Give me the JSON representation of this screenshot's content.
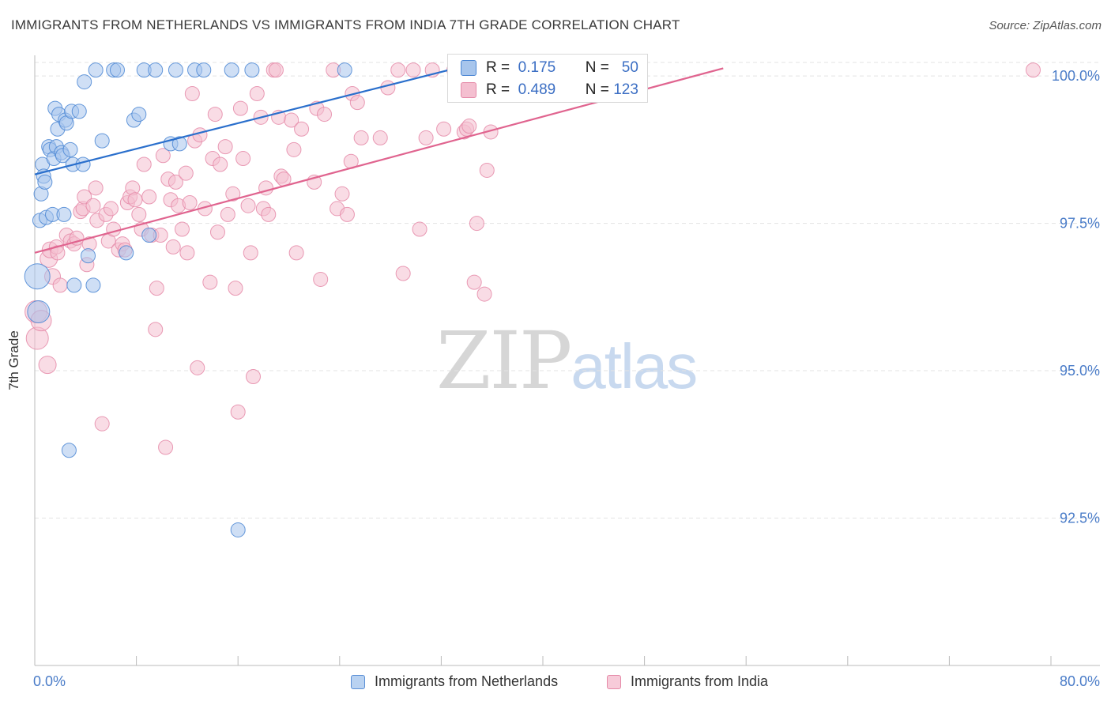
{
  "header": {
    "title": "IMMIGRANTS FROM NETHERLANDS VS IMMIGRANTS FROM INDIA 7TH GRADE CORRELATION CHART",
    "source": "Source: ZipAtlas.com"
  },
  "watermark": {
    "part1": "ZIP",
    "part2": "atlas"
  },
  "colors": {
    "blue_fill": "#a7c5ec",
    "blue_stroke": "#4a86d4",
    "blue_line": "#2a6fcc",
    "pink_fill": "#f4bfd0",
    "pink_stroke": "#e58aa8",
    "pink_line": "#e0648f",
    "grid": "#e3e3e3",
    "axis_tick_text": "#4a7cc8"
  },
  "stats": {
    "row1": {
      "r_label": "R =",
      "r_value": "0.175",
      "n_label": "N =",
      "n_value": "50"
    },
    "row2": {
      "r_label": "R =",
      "r_value": "0.489",
      "n_label": "N =",
      "n_value": "123"
    }
  },
  "legend": {
    "blue_label": "Immigrants from Netherlands",
    "pink_label": "Immigrants from India"
  },
  "axis": {
    "x_min_label": "0.0%",
    "x_max_label": "80.0%"
  },
  "chart_data": {
    "type": "scatter",
    "title": "IMMIGRANTS FROM NETHERLANDS VS IMMIGRANTS FROM INDIA 7TH GRADE CORRELATION CHART",
    "xlabel": "",
    "ylabel": "7th Grade",
    "xlim": [
      0,
      80
    ],
    "ylim": [
      90.0,
      100.35
    ],
    "yticks": [
      92.5,
      95.0,
      97.5,
      100.0
    ],
    "ytick_labels": [
      "92.5%",
      "95.0%",
      "97.5%",
      "100.0%"
    ],
    "grid": true,
    "legend_position": "bottom-center",
    "series": [
      {
        "name": "Immigrants from Netherlands",
        "R": 0.175,
        "N": 50,
        "trend": [
          [
            0.0,
            98.33
          ],
          [
            33.5,
            100.15
          ]
        ],
        "points": [
          [
            0.2,
            96.6,
            16
          ],
          [
            0.3,
            96.0,
            14
          ],
          [
            0.4,
            97.55,
            9
          ],
          [
            0.5,
            98.0,
            9
          ],
          [
            0.6,
            98.5,
            9
          ],
          [
            0.7,
            98.3,
            9
          ],
          [
            0.8,
            98.2,
            9
          ],
          [
            0.9,
            97.6,
            9
          ],
          [
            1.1,
            98.8,
            9
          ],
          [
            1.2,
            98.75,
            9
          ],
          [
            1.4,
            97.65,
            9
          ],
          [
            1.5,
            98.6,
            9
          ],
          [
            1.6,
            99.45,
            9
          ],
          [
            1.7,
            98.8,
            9
          ],
          [
            1.8,
            99.1,
            9
          ],
          [
            1.9,
            99.35,
            9
          ],
          [
            2.1,
            98.7,
            9
          ],
          [
            2.2,
            98.65,
            9
          ],
          [
            2.3,
            97.65,
            9
          ],
          [
            2.4,
            99.25,
            9
          ],
          [
            2.5,
            99.2,
            9
          ],
          [
            2.7,
            93.65,
            9
          ],
          [
            2.8,
            98.75,
            9
          ],
          [
            2.9,
            99.4,
            9
          ],
          [
            3.0,
            98.5,
            9
          ],
          [
            3.1,
            96.45,
            9
          ],
          [
            3.5,
            99.4,
            9
          ],
          [
            3.8,
            98.5,
            9
          ],
          [
            3.9,
            99.9,
            9
          ],
          [
            4.2,
            96.95,
            9
          ],
          [
            4.6,
            96.45,
            9
          ],
          [
            4.8,
            100.1,
            9
          ],
          [
            5.3,
            98.9,
            9
          ],
          [
            6.2,
            100.1,
            9
          ],
          [
            6.5,
            100.1,
            9
          ],
          [
            7.2,
            97.0,
            9
          ],
          [
            7.8,
            99.25,
            9
          ],
          [
            8.2,
            99.35,
            9
          ],
          [
            8.6,
            100.1,
            9
          ],
          [
            9.0,
            97.3,
            9
          ],
          [
            9.5,
            100.1,
            9
          ],
          [
            10.7,
            98.85,
            9
          ],
          [
            11.1,
            100.1,
            9
          ],
          [
            11.4,
            98.85,
            9
          ],
          [
            12.6,
            100.1,
            9
          ],
          [
            13.3,
            100.1,
            9
          ],
          [
            15.5,
            100.1,
            9
          ],
          [
            16.0,
            92.3,
            9
          ],
          [
            17.1,
            100.1,
            9
          ],
          [
            24.4,
            100.1,
            9
          ]
        ]
      },
      {
        "name": "Immigrants from India",
        "R": 0.489,
        "N": 123,
        "trend": [
          [
            0.0,
            97.0
          ],
          [
            54.2,
            100.13
          ]
        ],
        "points": [
          [
            0.1,
            96.0,
            14
          ],
          [
            0.2,
            95.55,
            14
          ],
          [
            0.5,
            95.85,
            13
          ],
          [
            1.0,
            95.1,
            11
          ],
          [
            1.1,
            96.9,
            11
          ],
          [
            1.2,
            97.05,
            10
          ],
          [
            1.4,
            96.6,
            10
          ],
          [
            1.7,
            97.1,
            9
          ],
          [
            1.8,
            97.0,
            9
          ],
          [
            2.0,
            96.45,
            9
          ],
          [
            2.5,
            97.3,
            9
          ],
          [
            2.8,
            97.2,
            9
          ],
          [
            3.1,
            97.15,
            9
          ],
          [
            3.3,
            97.25,
            9
          ],
          [
            3.6,
            97.7,
            9
          ],
          [
            3.8,
            97.75,
            9
          ],
          [
            3.9,
            97.95,
            9
          ],
          [
            4.1,
            96.8,
            9
          ],
          [
            4.3,
            97.15,
            9
          ],
          [
            4.6,
            97.8,
            9
          ],
          [
            4.8,
            98.1,
            9
          ],
          [
            4.9,
            97.55,
            9
          ],
          [
            5.3,
            94.1,
            9
          ],
          [
            5.6,
            97.65,
            9
          ],
          [
            5.8,
            97.2,
            9
          ],
          [
            6.0,
            97.75,
            9
          ],
          [
            6.2,
            97.4,
            9
          ],
          [
            6.6,
            97.05,
            9
          ],
          [
            6.9,
            97.15,
            9
          ],
          [
            7.1,
            97.05,
            9
          ],
          [
            7.3,
            97.85,
            9
          ],
          [
            7.5,
            97.95,
            9
          ],
          [
            7.7,
            98.1,
            9
          ],
          [
            7.9,
            97.9,
            9
          ],
          [
            8.2,
            97.65,
            9
          ],
          [
            8.4,
            97.4,
            9
          ],
          [
            8.6,
            98.5,
            9
          ],
          [
            9.0,
            97.95,
            9
          ],
          [
            9.2,
            97.3,
            9
          ],
          [
            9.5,
            95.7,
            9
          ],
          [
            9.6,
            96.4,
            9
          ],
          [
            9.9,
            97.3,
            9
          ],
          [
            10.1,
            98.65,
            9
          ],
          [
            10.3,
            93.7,
            9
          ],
          [
            10.5,
            98.25,
            9
          ],
          [
            10.7,
            97.9,
            9
          ],
          [
            10.9,
            97.1,
            9
          ],
          [
            11.1,
            98.2,
            9
          ],
          [
            11.3,
            97.8,
            9
          ],
          [
            11.6,
            97.4,
            9
          ],
          [
            11.9,
            98.35,
            9
          ],
          [
            12.0,
            97.0,
            9
          ],
          [
            12.2,
            97.85,
            9
          ],
          [
            12.4,
            99.7,
            9
          ],
          [
            12.6,
            98.9,
            9
          ],
          [
            12.8,
            95.05,
            9
          ],
          [
            13.0,
            99.0,
            9
          ],
          [
            13.4,
            97.75,
            9
          ],
          [
            13.8,
            96.5,
            9
          ],
          [
            14.0,
            98.6,
            9
          ],
          [
            14.2,
            99.35,
            9
          ],
          [
            14.4,
            97.35,
            9
          ],
          [
            14.6,
            98.5,
            9
          ],
          [
            15.0,
            98.8,
            9
          ],
          [
            15.2,
            97.65,
            9
          ],
          [
            15.6,
            98.0,
            9
          ],
          [
            15.8,
            96.4,
            9
          ],
          [
            16.0,
            94.3,
            9
          ],
          [
            16.2,
            99.45,
            9
          ],
          [
            16.4,
            98.6,
            9
          ],
          [
            16.8,
            97.8,
            9
          ],
          [
            17.0,
            97.0,
            9
          ],
          [
            17.2,
            94.9,
            9
          ],
          [
            17.5,
            99.7,
            9
          ],
          [
            17.8,
            99.3,
            9
          ],
          [
            18.0,
            97.75,
            9
          ],
          [
            18.2,
            98.1,
            9
          ],
          [
            18.4,
            97.65,
            9
          ],
          [
            18.8,
            100.1,
            9
          ],
          [
            19.0,
            100.1,
            9
          ],
          [
            19.2,
            99.3,
            9
          ],
          [
            19.4,
            98.3,
            9
          ],
          [
            19.6,
            98.25,
            9
          ],
          [
            20.2,
            99.25,
            9
          ],
          [
            20.4,
            98.75,
            9
          ],
          [
            20.6,
            97.0,
            9
          ],
          [
            21.0,
            99.1,
            9
          ],
          [
            22.0,
            98.2,
            9
          ],
          [
            22.2,
            99.45,
            9
          ],
          [
            22.5,
            96.55,
            9
          ],
          [
            22.8,
            99.35,
            9
          ],
          [
            23.5,
            100.1,
            9
          ],
          [
            23.8,
            97.75,
            9
          ],
          [
            24.2,
            98.0,
            9
          ],
          [
            24.6,
            97.65,
            9
          ],
          [
            24.9,
            98.55,
            9
          ],
          [
            25.0,
            99.7,
            9
          ],
          [
            25.4,
            99.55,
            9
          ],
          [
            25.7,
            98.95,
            9
          ],
          [
            27.2,
            98.95,
            9
          ],
          [
            27.8,
            99.8,
            9
          ],
          [
            28.6,
            100.1,
            9
          ],
          [
            29.0,
            96.65,
            9
          ],
          [
            29.8,
            100.1,
            9
          ],
          [
            30.3,
            97.4,
            9
          ],
          [
            30.8,
            98.95,
            9
          ],
          [
            31.3,
            100.1,
            9
          ],
          [
            32.2,
            99.1,
            9
          ],
          [
            33.0,
            100.1,
            9
          ],
          [
            33.8,
            99.05,
            9
          ],
          [
            34.0,
            99.1,
            9
          ],
          [
            34.2,
            99.15,
            9
          ],
          [
            34.6,
            96.5,
            9
          ],
          [
            34.8,
            97.5,
            9
          ],
          [
            35.4,
            96.3,
            9
          ],
          [
            35.6,
            98.4,
            9
          ],
          [
            35.9,
            99.05,
            9
          ],
          [
            78.6,
            100.1,
            9
          ]
        ]
      }
    ]
  }
}
